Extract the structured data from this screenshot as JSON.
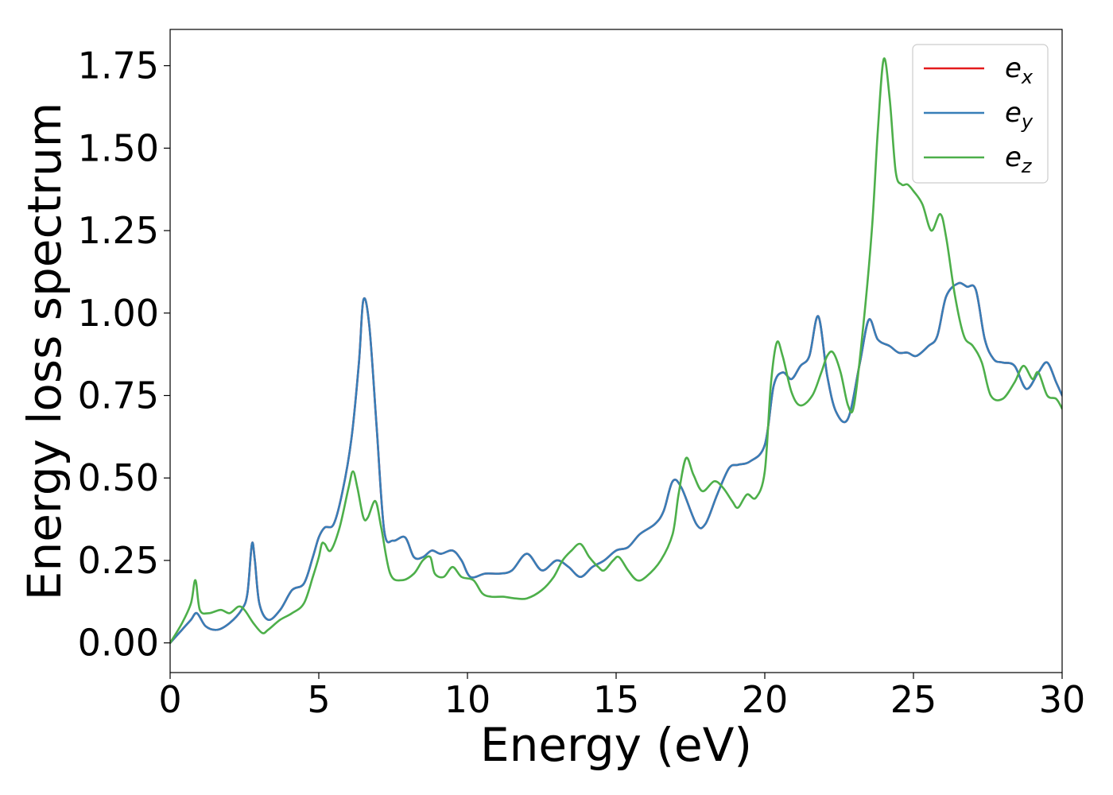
{
  "chart_data": {
    "type": "line",
    "xlabel": "Energy (eV)",
    "ylabel": "Energy loss spectrum",
    "xlim": [
      0,
      30
    ],
    "ylim": [
      -0.09,
      1.86
    ],
    "xticks": [
      0,
      5,
      10,
      15,
      20,
      25,
      30
    ],
    "xtick_labels": [
      "0",
      "5",
      "10",
      "15",
      "20",
      "25",
      "30"
    ],
    "yticks": [
      0.0,
      0.25,
      0.5,
      0.75,
      1.0,
      1.25,
      1.5,
      1.75
    ],
    "ytick_labels": [
      "0.00",
      "0.25",
      "0.50",
      "0.75",
      "1.00",
      "1.25",
      "1.50",
      "1.75"
    ],
    "grid": false,
    "legend_position": "top-right",
    "series": [
      {
        "name": "e_x",
        "label_base": "e",
        "label_sub": "x",
        "color": "#e41a1c",
        "x": [
          0,
          0.4,
          0.7,
          0.9,
          1.2,
          1.6,
          2.0,
          2.4,
          2.6,
          2.75,
          2.85,
          3.0,
          3.3,
          3.7,
          4.1,
          4.5,
          4.8,
          5.0,
          5.2,
          5.5,
          5.8,
          6.1,
          6.35,
          6.5,
          6.7,
          6.95,
          7.2,
          7.5,
          7.9,
          8.2,
          8.5,
          8.8,
          9.1,
          9.5,
          9.8,
          10.1,
          10.6,
          11.1,
          11.5,
          12.0,
          12.5,
          13.0,
          13.4,
          13.8,
          14.2,
          14.6,
          15.0,
          15.4,
          15.8,
          16.3,
          16.6,
          16.9,
          17.2,
          17.7,
          18.0,
          18.4,
          18.8,
          19.1,
          19.5,
          20.0,
          20.3,
          20.6,
          20.9,
          21.2,
          21.5,
          21.8,
          22.1,
          22.4,
          22.8,
          23.2,
          23.5,
          23.8,
          24.2,
          24.5,
          24.8,
          25.1,
          25.5,
          25.8,
          26.1,
          26.5,
          26.8,
          27.1,
          27.4,
          27.7,
          28.0,
          28.4,
          28.8,
          29.2,
          29.5,
          29.8,
          30.0
        ],
        "values": [
          0.0,
          0.04,
          0.07,
          0.09,
          0.05,
          0.04,
          0.06,
          0.1,
          0.15,
          0.3,
          0.25,
          0.12,
          0.07,
          0.1,
          0.16,
          0.18,
          0.26,
          0.32,
          0.35,
          0.36,
          0.46,
          0.62,
          0.85,
          1.04,
          0.96,
          0.65,
          0.34,
          0.31,
          0.32,
          0.26,
          0.26,
          0.28,
          0.27,
          0.28,
          0.25,
          0.2,
          0.21,
          0.21,
          0.22,
          0.27,
          0.22,
          0.25,
          0.23,
          0.2,
          0.23,
          0.25,
          0.28,
          0.29,
          0.33,
          0.36,
          0.4,
          0.49,
          0.47,
          0.36,
          0.36,
          0.45,
          0.53,
          0.54,
          0.55,
          0.6,
          0.78,
          0.82,
          0.8,
          0.84,
          0.87,
          0.99,
          0.81,
          0.7,
          0.68,
          0.85,
          0.98,
          0.92,
          0.9,
          0.88,
          0.88,
          0.87,
          0.9,
          0.93,
          1.05,
          1.09,
          1.08,
          1.07,
          0.92,
          0.86,
          0.85,
          0.84,
          0.77,
          0.82,
          0.85,
          0.79,
          0.75
        ]
      },
      {
        "name": "e_y",
        "label_base": "e",
        "label_sub": "y",
        "color": "#377eb8",
        "x": [
          0,
          0.4,
          0.7,
          0.9,
          1.2,
          1.6,
          2.0,
          2.4,
          2.6,
          2.75,
          2.85,
          3.0,
          3.3,
          3.7,
          4.1,
          4.5,
          4.8,
          5.0,
          5.2,
          5.5,
          5.8,
          6.1,
          6.35,
          6.5,
          6.7,
          6.95,
          7.2,
          7.5,
          7.9,
          8.2,
          8.5,
          8.8,
          9.1,
          9.5,
          9.8,
          10.1,
          10.6,
          11.1,
          11.5,
          12.0,
          12.5,
          13.0,
          13.4,
          13.8,
          14.2,
          14.6,
          15.0,
          15.4,
          15.8,
          16.3,
          16.6,
          16.9,
          17.2,
          17.7,
          18.0,
          18.4,
          18.8,
          19.1,
          19.5,
          20.0,
          20.3,
          20.6,
          20.9,
          21.2,
          21.5,
          21.8,
          22.1,
          22.4,
          22.8,
          23.2,
          23.5,
          23.8,
          24.2,
          24.5,
          24.8,
          25.1,
          25.5,
          25.8,
          26.1,
          26.5,
          26.8,
          27.1,
          27.4,
          27.7,
          28.0,
          28.4,
          28.8,
          29.2,
          29.5,
          29.8,
          30.0
        ],
        "values": [
          0.0,
          0.04,
          0.07,
          0.09,
          0.05,
          0.04,
          0.06,
          0.1,
          0.15,
          0.3,
          0.25,
          0.12,
          0.07,
          0.1,
          0.16,
          0.18,
          0.26,
          0.32,
          0.35,
          0.36,
          0.46,
          0.62,
          0.85,
          1.04,
          0.96,
          0.65,
          0.34,
          0.31,
          0.32,
          0.26,
          0.26,
          0.28,
          0.27,
          0.28,
          0.25,
          0.2,
          0.21,
          0.21,
          0.22,
          0.27,
          0.22,
          0.25,
          0.23,
          0.2,
          0.23,
          0.25,
          0.28,
          0.29,
          0.33,
          0.36,
          0.4,
          0.49,
          0.47,
          0.36,
          0.36,
          0.45,
          0.53,
          0.54,
          0.55,
          0.6,
          0.78,
          0.82,
          0.8,
          0.84,
          0.87,
          0.99,
          0.81,
          0.7,
          0.68,
          0.85,
          0.98,
          0.92,
          0.9,
          0.88,
          0.88,
          0.87,
          0.9,
          0.93,
          1.05,
          1.09,
          1.08,
          1.07,
          0.92,
          0.86,
          0.85,
          0.84,
          0.77,
          0.82,
          0.85,
          0.79,
          0.75
        ]
      },
      {
        "name": "e_z",
        "label_base": "e",
        "label_sub": "z",
        "color": "#4daf4a",
        "x": [
          0,
          0.4,
          0.7,
          0.85,
          1.0,
          1.3,
          1.7,
          2.0,
          2.3,
          2.5,
          2.8,
          3.1,
          3.3,
          3.7,
          4.1,
          4.5,
          4.8,
          5.0,
          5.1,
          5.2,
          5.4,
          5.7,
          6.0,
          6.15,
          6.3,
          6.5,
          6.65,
          6.9,
          7.1,
          7.4,
          7.8,
          8.2,
          8.5,
          8.75,
          8.9,
          9.2,
          9.5,
          9.8,
          10.2,
          10.5,
          10.8,
          11.2,
          11.6,
          12.0,
          12.5,
          12.9,
          13.2,
          13.5,
          13.8,
          14.1,
          14.4,
          14.6,
          14.9,
          15.1,
          15.4,
          15.7,
          16.0,
          16.5,
          16.9,
          17.1,
          17.35,
          17.6,
          17.9,
          18.3,
          18.6,
          18.9,
          19.1,
          19.4,
          19.7,
          20.0,
          20.2,
          20.4,
          20.6,
          20.9,
          21.2,
          21.6,
          21.9,
          22.1,
          22.3,
          22.55,
          22.8,
          23.0,
          23.3,
          23.6,
          23.8,
          24.0,
          24.2,
          24.4,
          24.6,
          24.8,
          25.0,
          25.3,
          25.6,
          25.9,
          26.1,
          26.4,
          26.7,
          27.0,
          27.3,
          27.6,
          28.0,
          28.4,
          28.7,
          29.0,
          29.2,
          29.5,
          29.8,
          30.0
        ],
        "values": [
          0.0,
          0.06,
          0.12,
          0.19,
          0.1,
          0.09,
          0.1,
          0.09,
          0.11,
          0.1,
          0.06,
          0.03,
          0.04,
          0.07,
          0.09,
          0.12,
          0.2,
          0.26,
          0.3,
          0.3,
          0.28,
          0.35,
          0.47,
          0.52,
          0.47,
          0.38,
          0.38,
          0.43,
          0.35,
          0.21,
          0.19,
          0.21,
          0.25,
          0.26,
          0.21,
          0.2,
          0.23,
          0.2,
          0.19,
          0.15,
          0.14,
          0.14,
          0.135,
          0.135,
          0.16,
          0.2,
          0.25,
          0.28,
          0.3,
          0.26,
          0.23,
          0.22,
          0.25,
          0.26,
          0.22,
          0.19,
          0.2,
          0.25,
          0.33,
          0.45,
          0.56,
          0.51,
          0.46,
          0.49,
          0.47,
          0.43,
          0.41,
          0.45,
          0.44,
          0.52,
          0.78,
          0.91,
          0.87,
          0.76,
          0.72,
          0.75,
          0.82,
          0.87,
          0.88,
          0.82,
          0.72,
          0.72,
          0.95,
          1.25,
          1.55,
          1.77,
          1.65,
          1.43,
          1.39,
          1.39,
          1.37,
          1.33,
          1.25,
          1.3,
          1.23,
          1.05,
          0.93,
          0.9,
          0.85,
          0.75,
          0.74,
          0.79,
          0.84,
          0.8,
          0.82,
          0.75,
          0.74,
          0.71
        ]
      }
    ]
  }
}
